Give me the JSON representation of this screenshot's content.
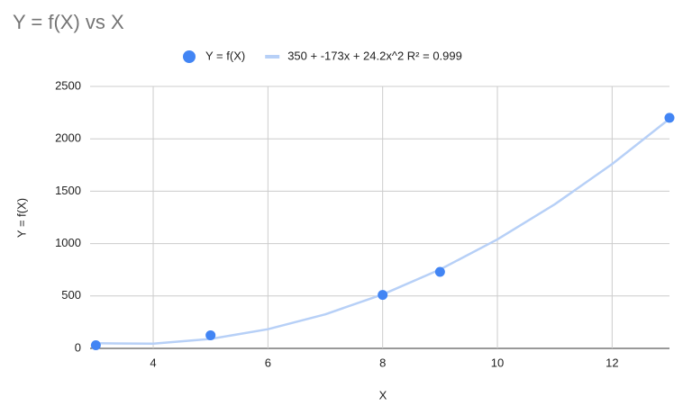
{
  "chart_data": {
    "type": "scatter",
    "title": "Y = f(X) vs X",
    "x_label": "X",
    "y_label": "Y = f(X)",
    "series": [
      {
        "name": "Y = f(X)",
        "color": "#4285f4",
        "style": "points",
        "x": [
          3,
          5,
          8,
          9,
          13
        ],
        "values": [
          30,
          125,
          510,
          730,
          2200
        ]
      },
      {
        "name": "350 + -173x + 24.2x^2 R² = 0.999",
        "color": "#b7d0f7",
        "style": "line",
        "x": [
          3,
          4,
          5,
          6,
          7,
          8,
          9,
          10,
          11,
          12,
          13
        ],
        "values": [
          49,
          45,
          90,
          183,
          325,
          515,
          753,
          1040,
          1375,
          1759,
          2191
        ]
      }
    ],
    "xlim": [
      2.9,
      13
    ],
    "xticks": [
      4,
      6,
      8,
      10,
      12
    ],
    "ylim": [
      0,
      2500
    ],
    "yticks": [
      0,
      500,
      1000,
      1500,
      2000,
      2500
    ],
    "grid": true,
    "legend": "top"
  }
}
